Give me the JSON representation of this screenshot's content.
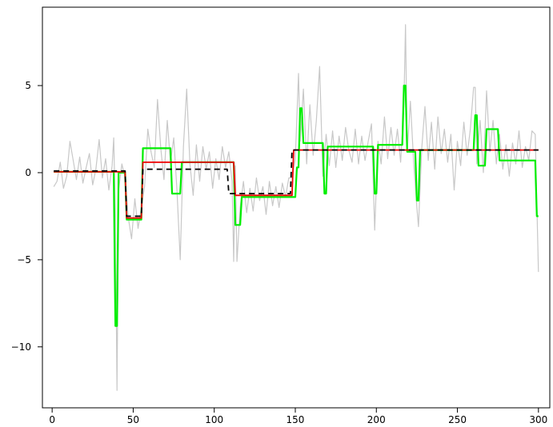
{
  "chart_data": {
    "type": "line",
    "title": "",
    "xlabel": "",
    "ylabel": "",
    "xlim": [
      -6,
      307
    ],
    "ylim": [
      -13.5,
      9.5
    ],
    "x_ticks": [
      0,
      50,
      100,
      150,
      200,
      250,
      300
    ],
    "y_ticks": [
      -10,
      -5,
      0,
      5
    ],
    "x_tick_labels": [
      "0",
      "50",
      "100",
      "150",
      "200",
      "250",
      "300"
    ],
    "y_tick_labels": [
      "−10",
      "−5",
      "0",
      "5"
    ],
    "grid": false,
    "legend": "none",
    "series": [
      {
        "role": "raw-data",
        "color": "#c8c8c8",
        "style": "solid",
        "points": [
          [
            1,
            -0.8
          ],
          [
            3,
            -0.5
          ],
          [
            5,
            0.6
          ],
          [
            7,
            -0.9
          ],
          [
            9,
            -0.2
          ],
          [
            11,
            1.8
          ],
          [
            13,
            0.7
          ],
          [
            15,
            -0.4
          ],
          [
            17,
            0.9
          ],
          [
            19,
            -0.6
          ],
          [
            21,
            0.3
          ],
          [
            23,
            1.1
          ],
          [
            25,
            -0.7
          ],
          [
            27,
            0.2
          ],
          [
            29,
            1.9
          ],
          [
            31,
            -0.3
          ],
          [
            33,
            0.8
          ],
          [
            35,
            -1.0
          ],
          [
            37,
            0.4
          ],
          [
            38,
            2.0
          ],
          [
            39,
            -2.5
          ],
          [
            40,
            -12.5
          ],
          [
            41,
            -1.0
          ],
          [
            43,
            0.5
          ],
          [
            45,
            -0.3
          ],
          [
            47,
            -2.6
          ],
          [
            49,
            -3.8
          ],
          [
            51,
            -1.5
          ],
          [
            53,
            -3.2
          ],
          [
            55,
            -2.0
          ],
          [
            57,
            -0.8
          ],
          [
            59,
            2.5
          ],
          [
            61,
            1.2
          ],
          [
            63,
            0.3
          ],
          [
            65,
            4.2
          ],
          [
            67,
            1.4
          ],
          [
            69,
            -0.4
          ],
          [
            71,
            3.0
          ],
          [
            73,
            0.6
          ],
          [
            75,
            2.0
          ],
          [
            77,
            -1.0
          ],
          [
            79,
            -5.0
          ],
          [
            81,
            1.5
          ],
          [
            83,
            4.8
          ],
          [
            85,
            0.5
          ],
          [
            87,
            -1.3
          ],
          [
            89,
            1.6
          ],
          [
            91,
            -0.5
          ],
          [
            93,
            1.5
          ],
          [
            95,
            0.2
          ],
          [
            97,
            1.2
          ],
          [
            99,
            -0.9
          ],
          [
            101,
            0.8
          ],
          [
            103,
            -0.4
          ],
          [
            105,
            1.5
          ],
          [
            107,
            0.3
          ],
          [
            109,
            1.2
          ],
          [
            111,
            -0.5
          ],
          [
            112,
            -5.1
          ],
          [
            113,
            0.4
          ],
          [
            114,
            -5.1
          ],
          [
            116,
            -2.0
          ],
          [
            118,
            -0.5
          ],
          [
            120,
            -2.3
          ],
          [
            122,
            -0.9
          ],
          [
            124,
            -2.2
          ],
          [
            126,
            -0.3
          ],
          [
            128,
            -1.6
          ],
          [
            130,
            -0.8
          ],
          [
            132,
            -2.4
          ],
          [
            134,
            -0.5
          ],
          [
            136,
            -1.9
          ],
          [
            138,
            -0.8
          ],
          [
            140,
            -2.0
          ],
          [
            142,
            -0.6
          ],
          [
            144,
            -1.4
          ],
          [
            146,
            -0.3
          ],
          [
            148,
            -0.3
          ],
          [
            150,
            0.8
          ],
          [
            152,
            5.7
          ],
          [
            153,
            1.8
          ],
          [
            155,
            4.8
          ],
          [
            157,
            0.5
          ],
          [
            159,
            3.9
          ],
          [
            161,
            1.0
          ],
          [
            163,
            3.0
          ],
          [
            165,
            6.1
          ],
          [
            167,
            -0.2
          ],
          [
            169,
            2.2
          ],
          [
            171,
            0.4
          ],
          [
            173,
            2.4
          ],
          [
            175,
            0.3
          ],
          [
            177,
            2.1
          ],
          [
            179,
            0.7
          ],
          [
            181,
            2.6
          ],
          [
            183,
            1.3
          ],
          [
            185,
            0.6
          ],
          [
            187,
            2.5
          ],
          [
            189,
            0.5
          ],
          [
            191,
            2.1
          ],
          [
            193,
            0.7
          ],
          [
            195,
            1.8
          ],
          [
            197,
            2.8
          ],
          [
            199,
            -3.3
          ],
          [
            201,
            1.8
          ],
          [
            203,
            0.5
          ],
          [
            205,
            3.2
          ],
          [
            207,
            0.8
          ],
          [
            209,
            2.6
          ],
          [
            211,
            1.0
          ],
          [
            213,
            2.5
          ],
          [
            215,
            0.6
          ],
          [
            217,
            3.9
          ],
          [
            218,
            8.5
          ],
          [
            219,
            1.2
          ],
          [
            221,
            4.1
          ],
          [
            223,
            0.6
          ],
          [
            225,
            -2.0
          ],
          [
            226,
            -3.1
          ],
          [
            228,
            1.4
          ],
          [
            230,
            3.8
          ],
          [
            232,
            0.7
          ],
          [
            234,
            2.9
          ],
          [
            236,
            0.2
          ],
          [
            238,
            3.2
          ],
          [
            240,
            1.1
          ],
          [
            242,
            2.5
          ],
          [
            244,
            0.6
          ],
          [
            246,
            2.2
          ],
          [
            248,
            -1.0
          ],
          [
            250,
            1.8
          ],
          [
            252,
            0.4
          ],
          [
            254,
            2.9
          ],
          [
            256,
            1.0
          ],
          [
            258,
            2.5
          ],
          [
            260,
            4.9
          ],
          [
            261,
            4.9
          ],
          [
            262,
            0.5
          ],
          [
            264,
            3.0
          ],
          [
            266,
            0.0
          ],
          [
            268,
            4.7
          ],
          [
            270,
            1.2
          ],
          [
            272,
            3.0
          ],
          [
            274,
            0.5
          ],
          [
            276,
            2.2
          ],
          [
            278,
            0.2
          ],
          [
            280,
            1.6
          ],
          [
            282,
            -0.2
          ],
          [
            284,
            1.7
          ],
          [
            286,
            0.5
          ],
          [
            288,
            2.4
          ],
          [
            290,
            0.3
          ],
          [
            292,
            1.5
          ],
          [
            294,
            0.7
          ],
          [
            296,
            2.4
          ],
          [
            298,
            2.2
          ],
          [
            300,
            -5.7
          ]
        ]
      },
      {
        "role": "green-segmentation",
        "color": "#00ee00",
        "style": "solid",
        "points": [
          [
            1,
            0.05
          ],
          [
            38,
            0.05
          ],
          [
            39,
            -8.8
          ],
          [
            40,
            -8.8
          ],
          [
            41,
            0.0
          ],
          [
            45,
            0.0
          ],
          [
            46,
            -2.7
          ],
          [
            55,
            -2.7
          ],
          [
            56,
            1.4
          ],
          [
            73,
            1.4
          ],
          [
            74,
            -1.2
          ],
          [
            79,
            -1.2
          ],
          [
            80,
            0.6
          ],
          [
            112,
            0.6
          ],
          [
            113,
            -3.0
          ],
          [
            116,
            -3.0
          ],
          [
            117,
            -1.4
          ],
          [
            150,
            -1.4
          ],
          [
            151,
            0.3
          ],
          [
            152,
            0.3
          ],
          [
            153,
            3.7
          ],
          [
            154,
            3.7
          ],
          [
            155,
            1.7
          ],
          [
            167,
            1.7
          ],
          [
            168,
            -1.2
          ],
          [
            169,
            -1.2
          ],
          [
            170,
            1.5
          ],
          [
            198,
            1.5
          ],
          [
            199,
            -1.2
          ],
          [
            200,
            -1.2
          ],
          [
            201,
            1.6
          ],
          [
            216,
            1.6
          ],
          [
            217,
            5.0
          ],
          [
            218,
            5.0
          ],
          [
            219,
            1.2
          ],
          [
            224,
            1.2
          ],
          [
            225,
            -1.6
          ],
          [
            226,
            -1.6
          ],
          [
            227,
            1.3
          ],
          [
            260,
            1.3
          ],
          [
            261,
            3.3
          ],
          [
            262,
            3.3
          ],
          [
            263,
            0.4
          ],
          [
            267,
            0.4
          ],
          [
            268,
            2.5
          ],
          [
            275,
            2.5
          ],
          [
            276,
            0.7
          ],
          [
            298,
            0.7
          ],
          [
            299,
            -2.5
          ],
          [
            300,
            -2.5
          ]
        ]
      },
      {
        "role": "red-segmentation",
        "color": "#ee0000",
        "style": "solid",
        "points": [
          [
            1,
            0.05
          ],
          [
            45,
            0.05
          ],
          [
            46,
            -2.6
          ],
          [
            55,
            -2.6
          ],
          [
            56,
            0.6
          ],
          [
            112,
            0.6
          ],
          [
            113,
            -1.3
          ],
          [
            148,
            -1.3
          ],
          [
            149,
            1.3
          ],
          [
            300,
            1.3
          ]
        ]
      },
      {
        "role": "true-signal",
        "color": "#000000",
        "style": "dashed",
        "points": [
          [
            1,
            0.1
          ],
          [
            45,
            0.1
          ],
          [
            46,
            -2.5
          ],
          [
            55,
            -2.5
          ],
          [
            56,
            0.2
          ],
          [
            108,
            0.2
          ],
          [
            109,
            -1.2
          ],
          [
            147,
            -1.2
          ],
          [
            148,
            1.3
          ],
          [
            300,
            1.3
          ]
        ]
      }
    ]
  }
}
